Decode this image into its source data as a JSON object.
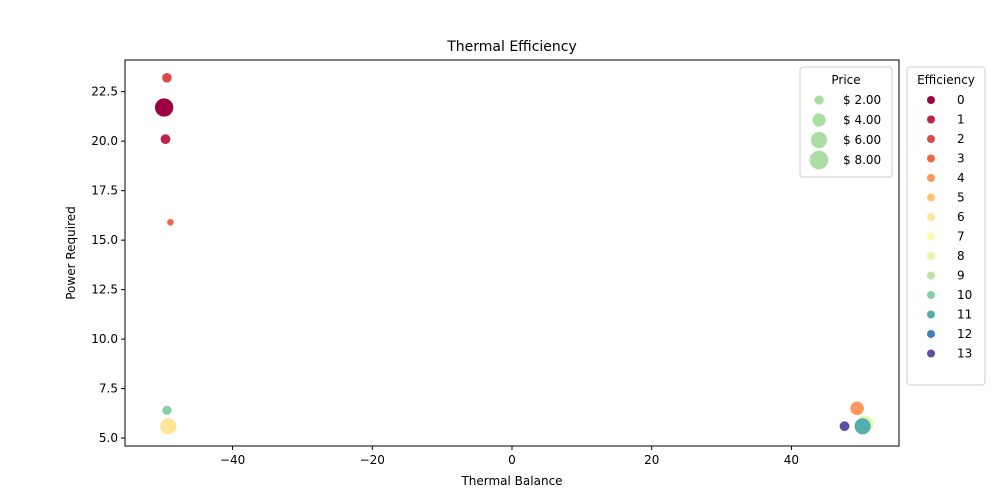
{
  "chart_data": {
    "type": "scatter",
    "title": "Thermal Efficiency",
    "xlabel": "Thermal Balance",
    "ylabel": "Power Required",
    "xlim": [
      -55.4,
      55.4
    ],
    "ylim": [
      4.6,
      24.1
    ],
    "xticks": [
      -40,
      -20,
      0,
      20,
      40
    ],
    "yticks": [
      5.0,
      7.5,
      10.0,
      12.5,
      15.0,
      17.5,
      20.0,
      22.5
    ],
    "xtick_labels": [
      "−40",
      "−20",
      "0",
      "20",
      "40"
    ],
    "ytick_labels": [
      "5.0",
      "7.5",
      "10.0",
      "12.5",
      "15.0",
      "17.5",
      "20.0",
      "22.5"
    ],
    "grid": false,
    "points": [
      {
        "x": -49.8,
        "y": 21.7,
        "price": 8.2,
        "efficiency": 0
      },
      {
        "x": -49.6,
        "y": 20.1,
        "price": 2.5,
        "efficiency": 1
      },
      {
        "x": -49.4,
        "y": 23.2,
        "price": 2.4,
        "efficiency": 2
      },
      {
        "x": -48.9,
        "y": 15.9,
        "price": 1.2,
        "efficiency": 3
      },
      {
        "x": 49.4,
        "y": 6.5,
        "price": 4.6,
        "efficiency": 4
      },
      {
        "x": -49.2,
        "y": 5.6,
        "price": 6.5,
        "efficiency": 6
      },
      {
        "x": 50.5,
        "y": 5.7,
        "price": 7.4,
        "efficiency": 8
      },
      {
        "x": -49.4,
        "y": 6.4,
        "price": 2.2,
        "efficiency": 10
      },
      {
        "x": 50.2,
        "y": 5.6,
        "price": 6.5,
        "efficiency": 11
      },
      {
        "x": 47.6,
        "y": 5.6,
        "price": 2.5,
        "efficiency": 13
      }
    ],
    "size_legend": {
      "title": "Price",
      "entries": [
        {
          "label": "$ 2.00",
          "price": 2.0
        },
        {
          "label": "$ 4.00",
          "price": 4.0
        },
        {
          "label": "$ 6.00",
          "price": 6.0
        },
        {
          "label": "$ 8.00",
          "price": 8.0
        }
      ],
      "color": "#abdda4",
      "placement": "upper-right-inside"
    },
    "color_legend": {
      "title": "Efficiency",
      "placement": "outside-right",
      "entries": [
        {
          "label": "0",
          "color": "#9e0142"
        },
        {
          "label": "1",
          "color": "#be254a"
        },
        {
          "label": "2",
          "color": "#dc494c"
        },
        {
          "label": "3",
          "color": "#f06744"
        },
        {
          "label": "4",
          "color": "#f99858"
        },
        {
          "label": "5",
          "color": "#fdc373"
        },
        {
          "label": "6",
          "color": "#fee597"
        },
        {
          "label": "7",
          "color": "#fbf8b0"
        },
        {
          "label": "8",
          "color": "#e9f69d"
        },
        {
          "label": "9",
          "color": "#bde5a0"
        },
        {
          "label": "10",
          "color": "#88cfa4"
        },
        {
          "label": "11",
          "color": "#54aead"
        },
        {
          "label": "12",
          "color": "#3f7eb6"
        },
        {
          "label": "13",
          "color": "#5e4fa2"
        }
      ]
    }
  }
}
